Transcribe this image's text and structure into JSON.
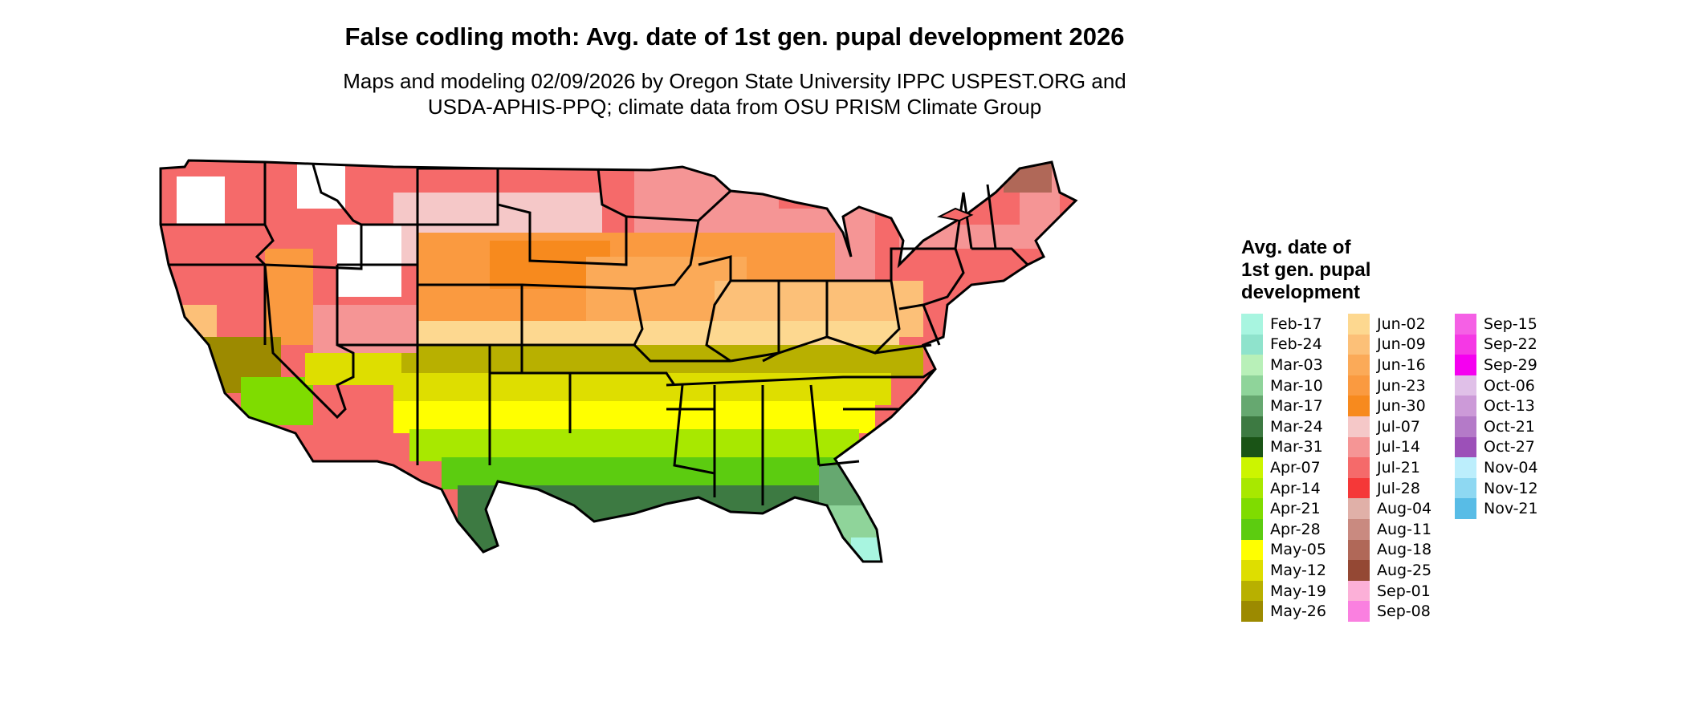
{
  "title": "False codling moth: Avg. date of 1st gen. pupal development 2026",
  "subtitle": {
    "line1": "Maps and modeling 02/09/2026 by Oregon State University IPPC USPEST.ORG and",
    "line2": "USDA-APHIS-PPQ; climate data from OSU PRISM Climate Group"
  },
  "legend": {
    "title_lines": [
      "Avg. date of",
      "1st gen. pupal",
      "development"
    ],
    "columns": [
      [
        {
          "label": "Feb-17",
          "color": "#a8f5e0"
        },
        {
          "label": "Feb-24",
          "color": "#8fe3cc"
        },
        {
          "label": "Mar-03",
          "color": "#b8f0b8"
        },
        {
          "label": "Mar-10",
          "color": "#8fd49a"
        },
        {
          "label": "Mar-17",
          "color": "#66a870"
        },
        {
          "label": "Mar-24",
          "color": "#3d7a42"
        },
        {
          "label": "Mar-31",
          "color": "#1a5416"
        },
        {
          "label": "Apr-07",
          "color": "#ccf500"
        },
        {
          "label": "Apr-14",
          "color": "#a8e800"
        },
        {
          "label": "Apr-21",
          "color": "#7fdc00"
        },
        {
          "label": "Apr-28",
          "color": "#5ccc10"
        },
        {
          "label": "May-05",
          "color": "#ffff00"
        },
        {
          "label": "May-12",
          "color": "#dede00"
        },
        {
          "label": "May-19",
          "color": "#b8b000"
        },
        {
          "label": "May-26",
          "color": "#9c8a00"
        }
      ],
      [
        {
          "label": "Jun-02",
          "color": "#fdd890"
        },
        {
          "label": "Jun-09",
          "color": "#fcc078"
        },
        {
          "label": "Jun-16",
          "color": "#fbaa58"
        },
        {
          "label": "Jun-23",
          "color": "#fa9a40"
        },
        {
          "label": "Jun-30",
          "color": "#f78a1e"
        },
        {
          "label": "Jul-07",
          "color": "#f5c8c8"
        },
        {
          "label": "Jul-14",
          "color": "#f59595"
        },
        {
          "label": "Jul-21",
          "color": "#f56a6a"
        },
        {
          "label": "Jul-28",
          "color": "#f53838"
        },
        {
          "label": "Aug-04",
          "color": "#e0b0a8"
        },
        {
          "label": "Aug-11",
          "color": "#c98a80"
        },
        {
          "label": "Aug-18",
          "color": "#b06858"
        },
        {
          "label": "Aug-25",
          "color": "#944834"
        },
        {
          "label": "Sep-01",
          "color": "#fcb0d8"
        },
        {
          "label": "Sep-08",
          "color": "#fa80e0"
        }
      ],
      [
        {
          "label": "Sep-15",
          "color": "#f560e5"
        },
        {
          "label": "Sep-22",
          "color": "#f538e5"
        },
        {
          "label": "Sep-29",
          "color": "#f500f0"
        },
        {
          "label": "Oct-06",
          "color": "#e0c0e8"
        },
        {
          "label": "Oct-13",
          "color": "#cc9ad8"
        },
        {
          "label": "Oct-21",
          "color": "#b47ac8"
        },
        {
          "label": "Oct-27",
          "color": "#9c50b8"
        },
        {
          "label": "Nov-04",
          "color": "#bceefc"
        },
        {
          "label": "Nov-12",
          "color": "#8ed8f2"
        },
        {
          "label": "Nov-21",
          "color": "#58bce6"
        }
      ]
    ]
  }
}
